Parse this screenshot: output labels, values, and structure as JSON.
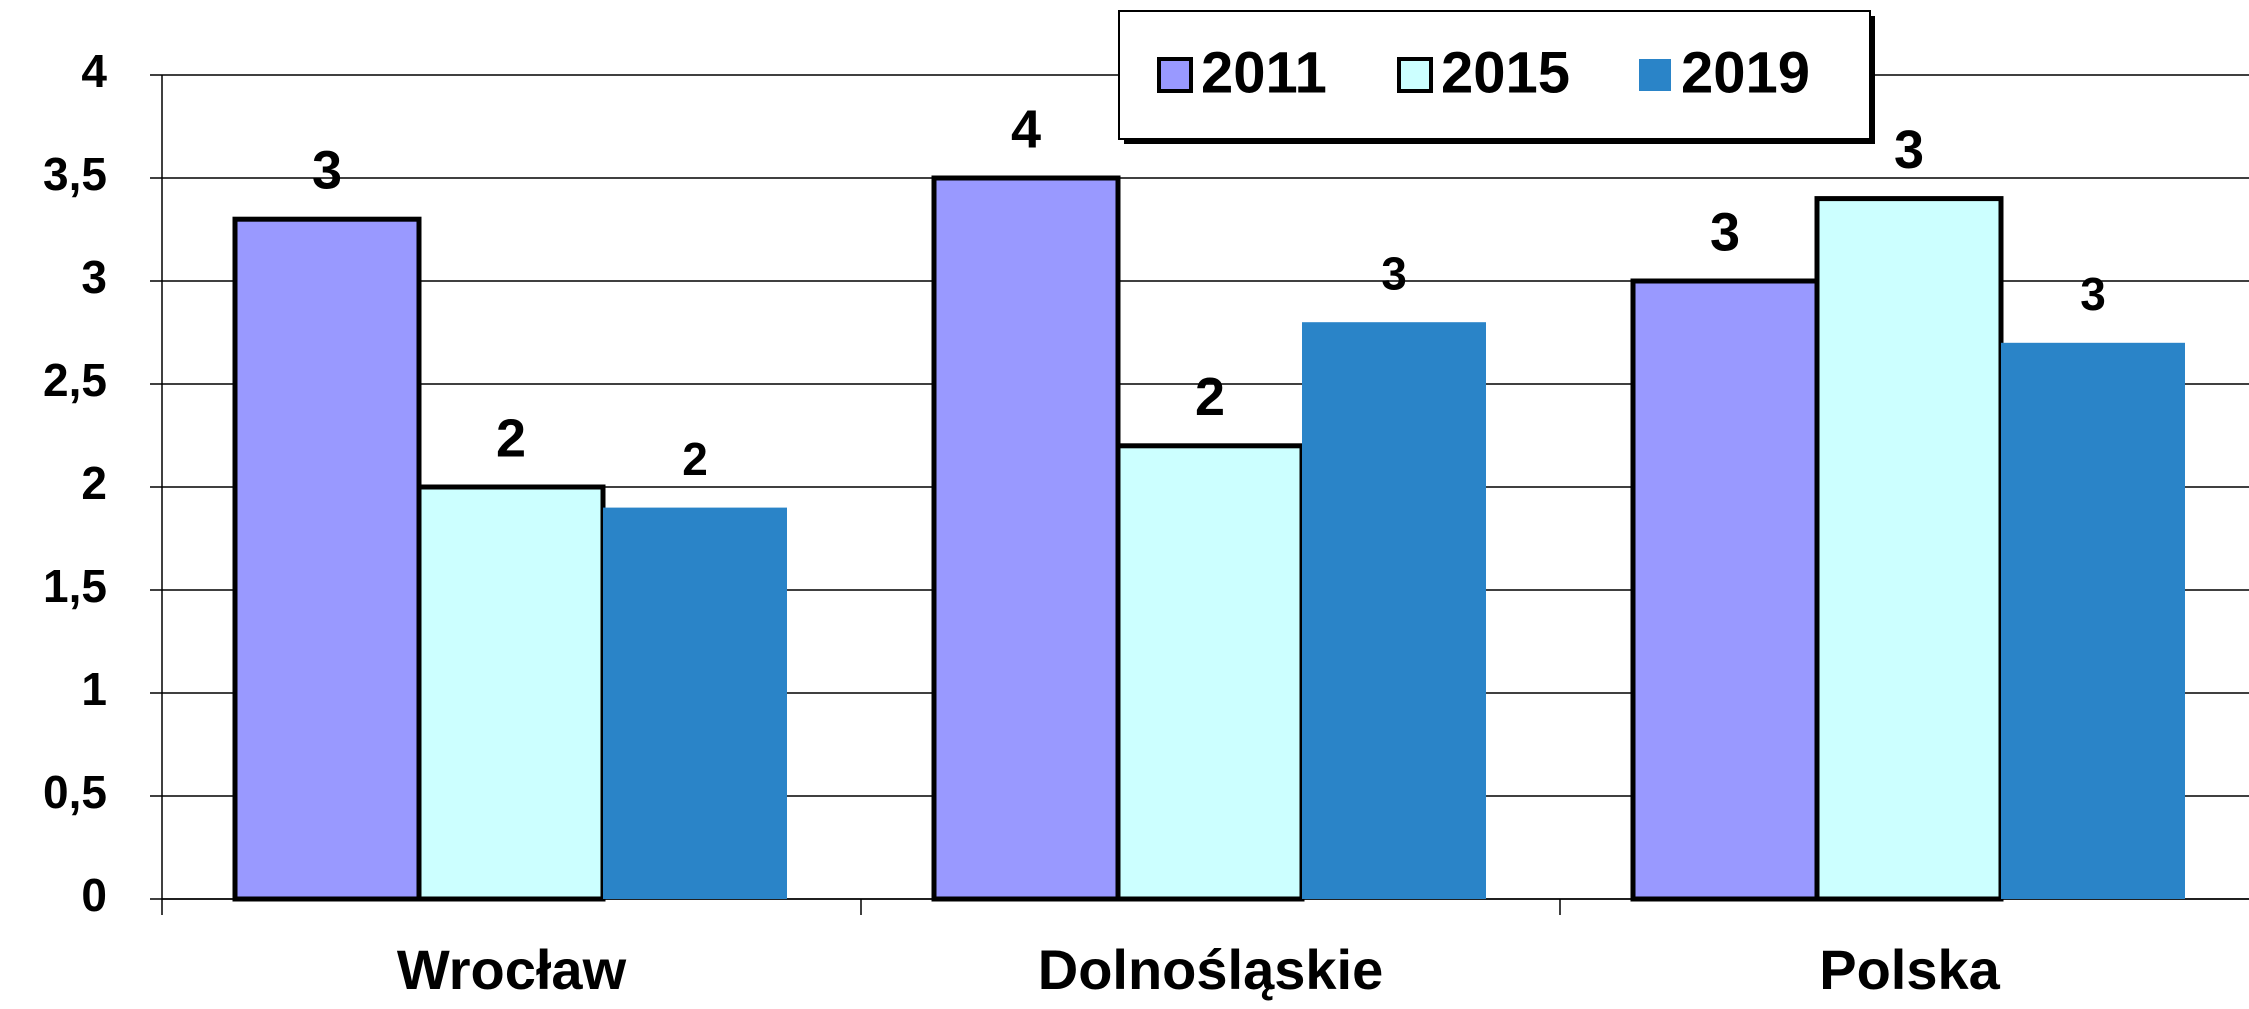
{
  "chart_data": {
    "type": "bar",
    "categories": [
      "Wrocław",
      "Dolnośląskie",
      "Polska"
    ],
    "series": [
      {
        "name": "2011",
        "color": "#9999ff",
        "edgecolor": "#000000",
        "values": [
          3.3,
          3.5,
          3.0
        ],
        "value_labels": [
          "3",
          "4",
          "3"
        ]
      },
      {
        "name": "2015",
        "color": "#ccffff",
        "edgecolor": "#000000",
        "values": [
          2.0,
          2.2,
          3.4
        ],
        "value_labels": [
          "2",
          "2",
          "3"
        ]
      },
      {
        "name": "2019",
        "color": "#2a84c8",
        "values": [
          1.9,
          2.8,
          2.7
        ],
        "value_labels": [
          "2",
          "3",
          "3"
        ]
      }
    ],
    "ylim": [
      0,
      4
    ],
    "yticks": [
      0,
      {
        "value": 0.5,
        "label": "0,5"
      },
      1,
      {
        "value": 1.5,
        "label": "1,5"
      },
      2,
      {
        "value": 2.5,
        "label": "2,5"
      },
      3,
      {
        "value": 3.5,
        "label": "3,5"
      },
      4
    ],
    "grid": true,
    "legend": "top"
  }
}
